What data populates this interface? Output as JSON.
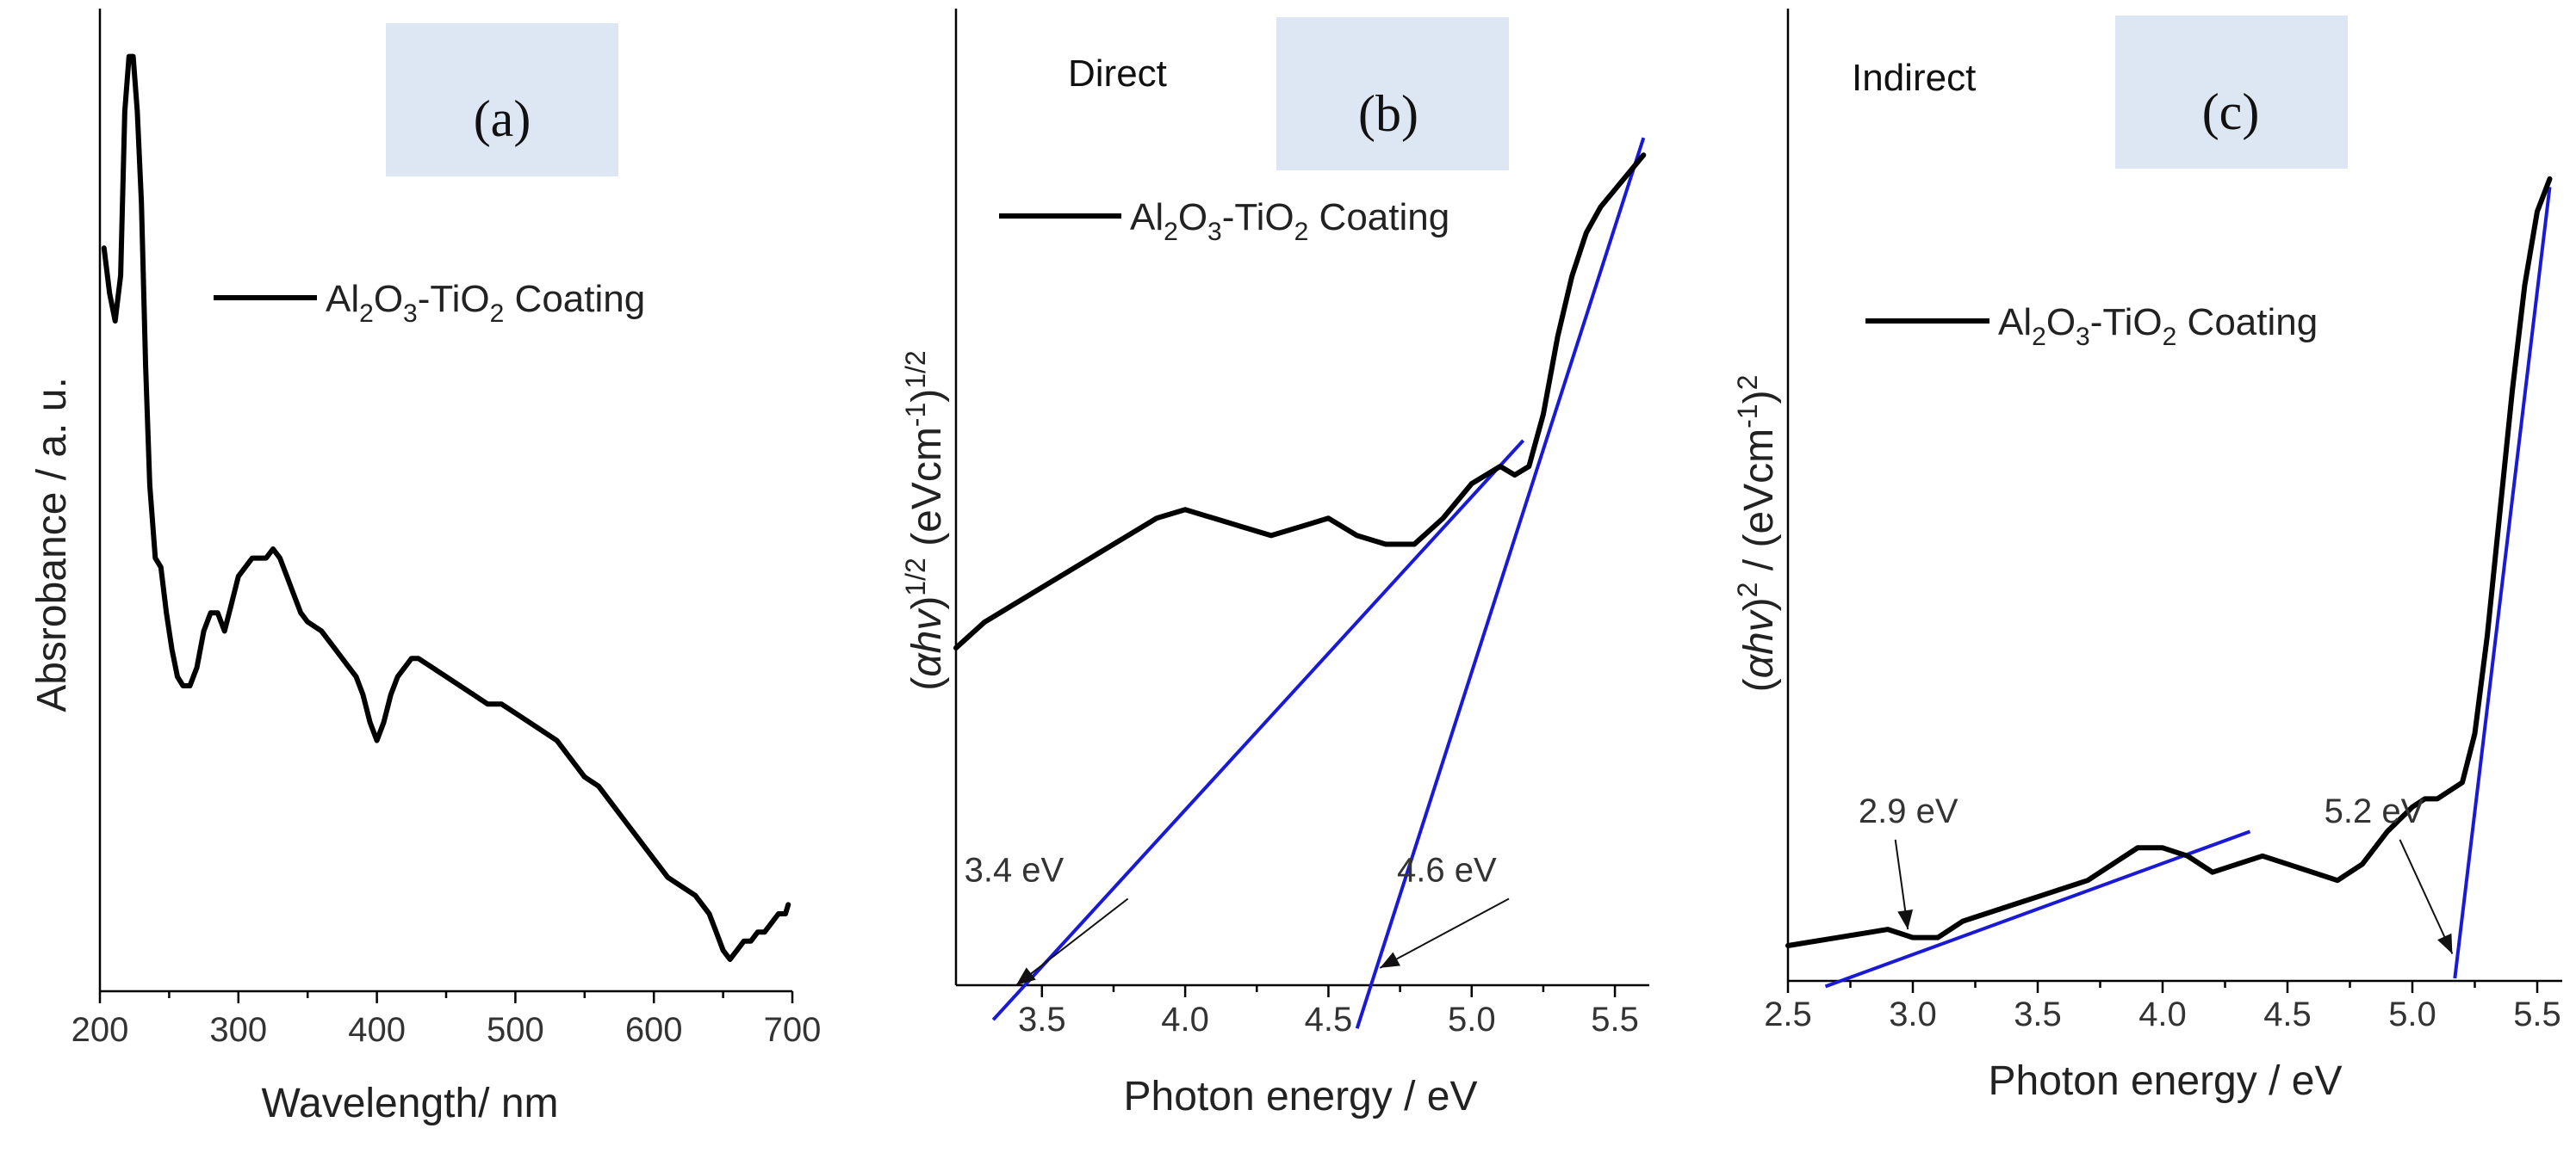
{
  "chart_data": [
    {
      "id": "a",
      "type": "line",
      "panel_label": "(a)",
      "xlabel": "Wavelength/ nm",
      "ylabel": "Absrobance / a. u.",
      "xlim": [
        200,
        700
      ],
      "ylim": [
        0,
        1
      ],
      "xticks": [
        200,
        300,
        400,
        500,
        600,
        700
      ],
      "xtick_labels": [
        "200",
        "300",
        "400",
        "500",
        "600",
        "700"
      ],
      "legend": {
        "parts": [
          "Al",
          "2",
          "O",
          "3",
          "-TiO",
          "2",
          " Coating"
        ],
        "placement": "upper-middle"
      },
      "series": [
        {
          "name": "Al2O3-TiO2 Coating",
          "x": [
            203,
            207,
            211,
            215,
            218,
            221,
            224,
            227,
            230,
            233,
            236,
            240,
            244,
            248,
            252,
            256,
            260,
            265,
            270,
            275,
            280,
            285,
            290,
            295,
            300,
            305,
            310,
            315,
            320,
            325,
            330,
            335,
            340,
            345,
            350,
            360,
            370,
            380,
            385,
            390,
            395,
            400,
            405,
            410,
            415,
            420,
            425,
            430,
            440,
            450,
            460,
            470,
            480,
            490,
            500,
            510,
            520,
            530,
            540,
            550,
            560,
            570,
            580,
            590,
            600,
            610,
            620,
            630,
            640,
            645,
            650,
            655,
            660,
            665,
            670,
            675,
            680,
            685,
            690,
            695,
            697
          ],
          "y": [
            0.78,
            0.73,
            0.7,
            0.75,
            0.93,
            0.99,
            0.99,
            0.93,
            0.83,
            0.65,
            0.52,
            0.44,
            0.43,
            0.38,
            0.34,
            0.31,
            0.3,
            0.3,
            0.32,
            0.36,
            0.38,
            0.38,
            0.36,
            0.39,
            0.42,
            0.43,
            0.44,
            0.44,
            0.44,
            0.45,
            0.44,
            0.42,
            0.4,
            0.38,
            0.37,
            0.36,
            0.34,
            0.32,
            0.31,
            0.29,
            0.26,
            0.24,
            0.26,
            0.29,
            0.31,
            0.32,
            0.33,
            0.33,
            0.32,
            0.31,
            0.3,
            0.29,
            0.28,
            0.28,
            0.27,
            0.26,
            0.25,
            0.24,
            0.22,
            0.2,
            0.19,
            0.17,
            0.15,
            0.13,
            0.11,
            0.09,
            0.08,
            0.07,
            0.05,
            0.03,
            0.01,
            0.0,
            0.01,
            0.02,
            0.02,
            0.03,
            0.03,
            0.04,
            0.05,
            0.05,
            0.06
          ]
        }
      ]
    },
    {
      "id": "b",
      "type": "line",
      "panel_label": "(b)",
      "type_label": "Direct",
      "xlabel": "Photon energy / eV",
      "ylabel_parts": [
        "(",
        "α",
        "hv",
        ")",
        "1/2",
        " (eVcm",
        "-1",
        ")",
        "1/2"
      ],
      "xlim": [
        3.2,
        5.62
      ],
      "ylim": [
        0,
        1
      ],
      "xticks": [
        3.5,
        4.0,
        4.5,
        5.0,
        5.5
      ],
      "xtick_labels": [
        "3.5",
        "4.0",
        "4.5",
        "5.0",
        "5.5"
      ],
      "legend": {
        "parts": [
          "Al",
          "2",
          "O",
          "3",
          "-TiO",
          "2",
          " Coating"
        ],
        "placement": "upper-right"
      },
      "series": [
        {
          "name": "Al2O3-TiO2 Coating",
          "x": [
            3.2,
            3.3,
            3.4,
            3.5,
            3.6,
            3.7,
            3.8,
            3.9,
            4.0,
            4.1,
            4.2,
            4.3,
            4.4,
            4.5,
            4.6,
            4.7,
            4.8,
            4.9,
            5.0,
            5.1,
            5.15,
            5.2,
            5.25,
            5.3,
            5.35,
            5.4,
            5.45,
            5.5,
            5.55,
            5.6
          ],
          "y": [
            0.39,
            0.42,
            0.44,
            0.46,
            0.48,
            0.5,
            0.52,
            0.54,
            0.55,
            0.54,
            0.53,
            0.52,
            0.53,
            0.54,
            0.52,
            0.51,
            0.51,
            0.54,
            0.58,
            0.6,
            0.59,
            0.6,
            0.66,
            0.75,
            0.82,
            0.87,
            0.9,
            0.92,
            0.94,
            0.96
          ]
        }
      ],
      "fit_lines": [
        {
          "x": [
            3.33,
            5.18
          ],
          "y": [
            -0.04,
            0.63
          ]
        },
        {
          "x": [
            4.6,
            5.6
          ],
          "y": [
            -0.05,
            0.98
          ]
        }
      ],
      "annotations": [
        {
          "text": "3.4  eV",
          "from": [
            3.8,
            0.1
          ],
          "to": [
            3.41,
            0.0
          ]
        },
        {
          "text": "4.6 eV",
          "from": [
            5.13,
            0.1
          ],
          "to": [
            4.68,
            0.02
          ]
        }
      ]
    },
    {
      "id": "c",
      "type": "line",
      "panel_label": "(c)",
      "type_label": "Indirect",
      "xlabel": "Photon energy / eV",
      "ylabel_parts": [
        "(",
        "α",
        "hv",
        ")",
        "2",
        " / (eVcm",
        "-1",
        ")",
        "2"
      ],
      "xlim": [
        2.5,
        5.6
      ],
      "ylim": [
        0,
        1
      ],
      "xticks": [
        2.5,
        3.0,
        3.5,
        4.0,
        4.5,
        5.0,
        5.5
      ],
      "xtick_labels": [
        "2.5",
        "3.0",
        "3.5",
        "4.0",
        "4.5",
        "5.0",
        "5.5"
      ],
      "legend": {
        "parts": [
          "Al",
          "2",
          "O",
          "3",
          "-TiO",
          "2",
          " Coating"
        ],
        "placement": "upper-middle"
      },
      "series": [
        {
          "name": "Al2O3-TiO2 Coating",
          "x": [
            2.5,
            2.7,
            2.9,
            3.0,
            3.1,
            3.2,
            3.3,
            3.4,
            3.5,
            3.6,
            3.7,
            3.8,
            3.9,
            4.0,
            4.1,
            4.2,
            4.3,
            4.4,
            4.5,
            4.6,
            4.7,
            4.8,
            4.9,
            5.0,
            5.05,
            5.1,
            5.15,
            5.2,
            5.25,
            5.3,
            5.35,
            5.4,
            5.45,
            5.5,
            5.55
          ],
          "y": [
            0.02,
            0.03,
            0.04,
            0.03,
            0.03,
            0.05,
            0.06,
            0.07,
            0.08,
            0.09,
            0.1,
            0.12,
            0.14,
            0.14,
            0.13,
            0.11,
            0.12,
            0.13,
            0.12,
            0.11,
            0.1,
            0.12,
            0.16,
            0.19,
            0.2,
            0.2,
            0.21,
            0.22,
            0.28,
            0.4,
            0.55,
            0.7,
            0.83,
            0.92,
            0.96
          ]
        }
      ],
      "fit_lines": [
        {
          "x": [
            2.65,
            4.35
          ],
          "y": [
            -0.03,
            0.16
          ]
        },
        {
          "x": [
            5.17,
            5.55
          ],
          "y": [
            -0.02,
            0.95
          ]
        }
      ],
      "annotations": [
        {
          "text": "2.9 eV",
          "from": [
            2.93,
            0.15
          ],
          "to": [
            2.98,
            0.04
          ]
        },
        {
          "text": "5.2 eV",
          "from": [
            4.95,
            0.15
          ],
          "to": [
            5.16,
            0.01
          ]
        }
      ]
    }
  ]
}
